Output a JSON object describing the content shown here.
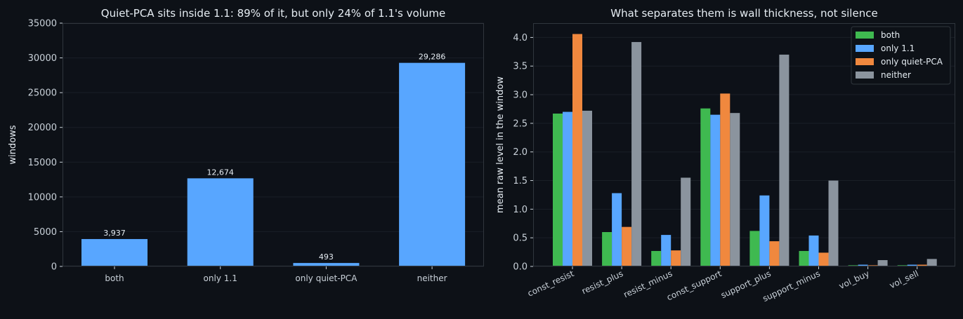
{
  "colors": {
    "background": "#0d1117",
    "axes_face": "#0d1118",
    "spine": "#30363d",
    "grid": "#1a1f27",
    "text": "#e6edf3",
    "tick_text": "#c9d1d9",
    "bar_primary": "#58a6ff",
    "legend_face": "#0d1117",
    "legend_edge": "#30363d"
  },
  "chart_data": [
    {
      "type": "bar",
      "title": "Quiet-PCA sits inside 1.1: 89% of it, but only 24% of 1.1's volume",
      "xlabel": "",
      "ylabel": "windows",
      "categories": [
        "both",
        "only 1.1",
        "only quiet-PCA",
        "neither"
      ],
      "values": [
        3937,
        12674,
        493,
        29286
      ],
      "value_labels": [
        "3,937",
        "12,674",
        "493",
        "29,286"
      ],
      "ylim": [
        0,
        35000
      ],
      "yticks": [
        0,
        5000,
        10000,
        15000,
        20000,
        25000,
        30000,
        35000
      ],
      "ytick_labels": [
        "0",
        "5000",
        "10000",
        "15000",
        "20000",
        "25000",
        "30000",
        "35000"
      ],
      "grid": true,
      "color": "#58a6ff"
    },
    {
      "type": "bar",
      "title": "What separates them is wall thickness, not silence",
      "xlabel": "",
      "ylabel": "mean raw level in the window",
      "categories": [
        "const_resist",
        "resist_plus",
        "resist_minus",
        "const_support",
        "support_plus",
        "support_minus",
        "vol_buy",
        "vol_sell"
      ],
      "series": [
        {
          "name": "both",
          "color": "#3fb950",
          "values": [
            2.67,
            0.6,
            0.27,
            2.76,
            0.62,
            0.27,
            0.02,
            0.02
          ]
        },
        {
          "name": "only 1.1",
          "color": "#58a6ff",
          "values": [
            2.7,
            1.28,
            0.55,
            2.65,
            1.24,
            0.54,
            0.03,
            0.03
          ]
        },
        {
          "name": "only quiet-PCA",
          "color": "#f0883e",
          "values": [
            4.06,
            0.69,
            0.28,
            3.02,
            0.44,
            0.24,
            0.02,
            0.03
          ]
        },
        {
          "name": "neither",
          "color": "#8b949e",
          "values": [
            2.72,
            3.92,
            1.55,
            2.68,
            3.7,
            1.5,
            0.11,
            0.13
          ]
        }
      ],
      "ylim": [
        0,
        4.25
      ],
      "yticks": [
        0,
        0.5,
        1.0,
        1.5,
        2.0,
        2.5,
        3.0,
        3.5,
        4.0
      ],
      "ytick_labels": [
        "0.0",
        "0.5",
        "1.0",
        "1.5",
        "2.0",
        "2.5",
        "3.0",
        "3.5",
        "4.0"
      ],
      "grid": true,
      "legend_position": "top-right"
    }
  ]
}
